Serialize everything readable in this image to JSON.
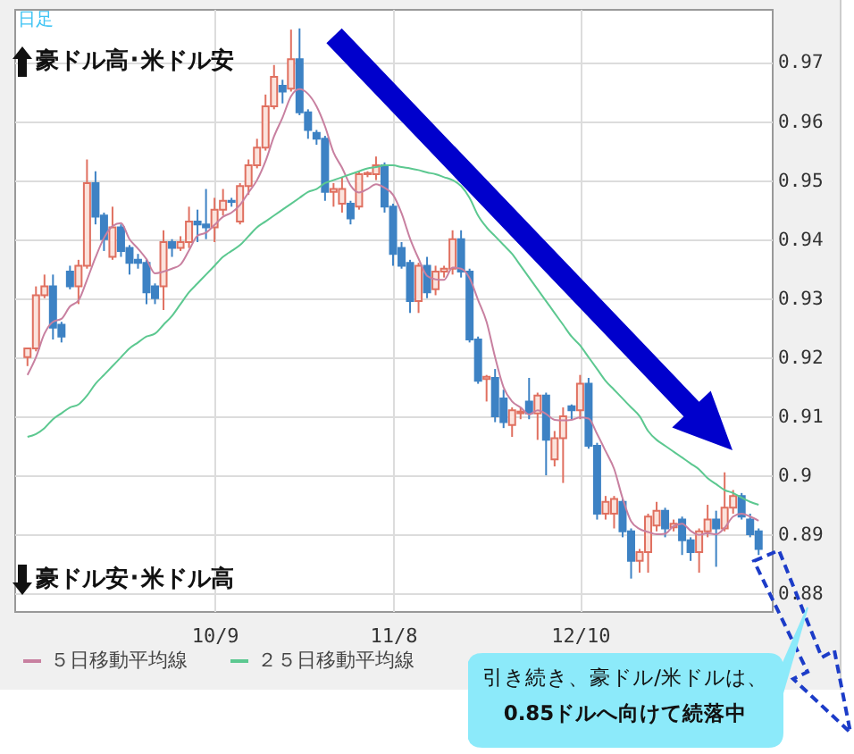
{
  "chart_data": {
    "type": "candlestick",
    "annotations": [
      "日足",
      "豪ドル高･米ドル安",
      "豪ドル安･米ドル高",
      "引き続き、豪ドル/米ドルは、\n0.85ドルへ向けて続落中"
    ],
    "categories": [
      null,
      null,
      null,
      null,
      null,
      null,
      null,
      null,
      null,
      null,
      null,
      null,
      null,
      null,
      null,
      null,
      null,
      null,
      null,
      null,
      null,
      null,
      "10/9",
      null,
      null,
      null,
      null,
      null,
      null,
      null,
      null,
      null,
      null,
      null,
      null,
      null,
      null,
      null,
      null,
      null,
      null,
      null,
      null,
      "11/8",
      null,
      null,
      null,
      null,
      null,
      null,
      null,
      null,
      null,
      null,
      null,
      null,
      null,
      null,
      null,
      null,
      null,
      null,
      null,
      null,
      null,
      "12/10",
      null,
      null,
      null,
      null,
      null,
      null,
      null,
      null,
      null,
      null,
      null,
      null,
      null,
      null,
      null,
      null,
      null,
      null,
      null,
      null,
      null
    ],
    "ohlc": [
      [
        0.92,
        0.9215,
        0.9185,
        0.9215
      ],
      [
        0.9215,
        0.932,
        0.921,
        0.9305
      ],
      [
        0.9305,
        0.934,
        0.93,
        0.932
      ],
      [
        0.932,
        0.934,
        0.923,
        0.925
      ],
      [
        0.9255,
        0.926,
        0.9225,
        0.9235
      ],
      [
        0.9345,
        0.9355,
        0.9315,
        0.932
      ],
      [
        0.932,
        0.9365,
        0.929,
        0.9355
      ],
      [
        0.9355,
        0.9535,
        0.935,
        0.9495
      ],
      [
        0.9495,
        0.9515,
        0.9425,
        0.9438
      ],
      [
        0.944,
        0.9445,
        0.938,
        0.94
      ],
      [
        0.937,
        0.9455,
        0.9365,
        0.942
      ],
      [
        0.942,
        0.9425,
        0.937,
        0.938
      ],
      [
        0.9385,
        0.939,
        0.934,
        0.936
      ],
      [
        0.9365,
        0.9375,
        0.935,
        0.936
      ],
      [
        0.936,
        0.9365,
        0.929,
        0.931
      ],
      [
        0.932,
        0.9325,
        0.929,
        0.93
      ],
      [
        0.932,
        0.9415,
        0.928,
        0.9395
      ],
      [
        0.9395,
        0.94,
        0.937,
        0.9385
      ],
      [
        0.9385,
        0.9405,
        0.938,
        0.9395
      ],
      [
        0.9395,
        0.9455,
        0.9385,
        0.943
      ],
      [
        0.943,
        0.945,
        0.9395,
        0.9425
      ],
      [
        0.9425,
        0.9485,
        0.94,
        0.942
      ],
      [
        0.942,
        0.947,
        0.9395,
        0.945
      ],
      [
        0.945,
        0.9485,
        0.944,
        0.9465
      ],
      [
        0.9465,
        0.947,
        0.9455,
        0.9463
      ],
      [
        0.943,
        0.9495,
        0.9425,
        0.949
      ],
      [
        0.949,
        0.9535,
        0.9475,
        0.9525
      ],
      [
        0.9525,
        0.957,
        0.952,
        0.9555
      ],
      [
        0.9555,
        0.9645,
        0.955,
        0.9625
      ],
      [
        0.9625,
        0.9695,
        0.962,
        0.9675
      ],
      [
        0.966,
        0.967,
        0.963,
        0.965
      ],
      [
        0.9655,
        0.9755,
        0.965,
        0.9705
      ],
      [
        0.9705,
        0.9757,
        0.961,
        0.9615
      ],
      [
        0.9615,
        0.962,
        0.957,
        0.9585
      ],
      [
        0.958,
        0.9585,
        0.956,
        0.957
      ],
      [
        0.957,
        0.9575,
        0.9465,
        0.948
      ],
      [
        0.948,
        0.9495,
        0.9455,
        0.9485
      ],
      [
        0.946,
        0.9505,
        0.9445,
        0.9485
      ],
      [
        0.946,
        0.9465,
        0.9425,
        0.9435
      ],
      [
        0.9455,
        0.9515,
        0.945,
        0.951
      ],
      [
        0.951,
        0.9515,
        0.9505,
        0.9512
      ],
      [
        0.951,
        0.954,
        0.95,
        0.9525
      ],
      [
        0.9525,
        0.953,
        0.9445,
        0.9455
      ],
      [
        0.9455,
        0.946,
        0.9355,
        0.9375
      ],
      [
        0.9385,
        0.9395,
        0.935,
        0.9355
      ],
      [
        0.936,
        0.9365,
        0.9275,
        0.9295
      ],
      [
        0.9295,
        0.936,
        0.9275,
        0.9355
      ],
      [
        0.9355,
        0.937,
        0.93,
        0.931
      ],
      [
        0.9315,
        0.9355,
        0.9305,
        0.9345
      ],
      [
        0.9345,
        0.9355,
        0.9335,
        0.935
      ],
      [
        0.935,
        0.9415,
        0.934,
        0.94
      ],
      [
        0.94,
        0.9415,
        0.9335,
        0.9345
      ],
      [
        0.9345,
        0.935,
        0.9225,
        0.923
      ],
      [
        0.923,
        0.9235,
        0.9155,
        0.916
      ],
      [
        0.9163,
        0.917,
        0.9125,
        0.9167
      ],
      [
        0.9165,
        0.918,
        0.909,
        0.91
      ],
      [
        0.913,
        0.9145,
        0.908,
        0.909
      ],
      [
        0.9085,
        0.9115,
        0.9065,
        0.911
      ],
      [
        0.9105,
        0.9115,
        0.9095,
        0.9108
      ],
      [
        0.9125,
        0.9165,
        0.9095,
        0.9105
      ],
      [
        0.9105,
        0.914,
        0.906,
        0.9135
      ],
      [
        0.9135,
        0.914,
        0.9,
        0.906
      ],
      [
        0.9027,
        0.9075,
        0.9015,
        0.9063
      ],
      [
        0.9063,
        0.9115,
        0.8987,
        0.91
      ],
      [
        0.9117,
        0.912,
        0.9095,
        0.911
      ],
      [
        0.911,
        0.917,
        0.9095,
        0.9155
      ],
      [
        0.9155,
        0.9165,
        0.9045,
        0.905
      ],
      [
        0.905,
        0.9055,
        0.8925,
        0.8935
      ],
      [
        0.8935,
        0.8965,
        0.8925,
        0.8955
      ],
      [
        0.8935,
        0.8965,
        0.891,
        0.896
      ],
      [
        0.8955,
        0.896,
        0.8895,
        0.8905
      ],
      [
        0.8905,
        0.891,
        0.8825,
        0.8855
      ],
      [
        0.8855,
        0.8875,
        0.8835,
        0.887
      ],
      [
        0.887,
        0.8935,
        0.8835,
        0.893
      ],
      [
        0.8915,
        0.8955,
        0.8905,
        0.894
      ],
      [
        0.894,
        0.8945,
        0.8895,
        0.891
      ],
      [
        0.8912,
        0.8925,
        0.8905,
        0.8918
      ],
      [
        0.8925,
        0.893,
        0.8865,
        0.889
      ],
      [
        0.889,
        0.8895,
        0.8855,
        0.887
      ],
      [
        0.887,
        0.891,
        0.8835,
        0.8905
      ],
      [
        0.8905,
        0.895,
        0.8895,
        0.8925
      ],
      [
        0.8925,
        0.894,
        0.8845,
        0.891
      ],
      [
        0.891,
        0.9005,
        0.8905,
        0.8945
      ],
      [
        0.8945,
        0.8975,
        0.8935,
        0.8965
      ],
      [
        0.8965,
        0.897,
        0.8925,
        0.893
      ],
      [
        0.8925,
        0.8935,
        0.8895,
        0.89
      ],
      [
        0.8905,
        0.891,
        0.8865,
        0.8875
      ]
    ],
    "series": [
      {
        "type": "line",
        "name": "５日移動平均線",
        "color": "#c880a0",
        "values": [
          0.917,
          0.92,
          0.924,
          0.926,
          0.9265,
          0.9286,
          0.9296,
          0.9331,
          0.9369,
          0.9402,
          0.9422,
          0.9427,
          0.94,
          0.9384,
          0.9366,
          0.9342,
          0.9345,
          0.935,
          0.9357,
          0.9381,
          0.9406,
          0.9411,
          0.9424,
          0.9438,
          0.9445,
          0.9458,
          0.9479,
          0.95,
          0.9532,
          0.9574,
          0.9606,
          0.9642,
          0.9654,
          0.9646,
          0.9625,
          0.9591,
          0.9547,
          0.9521,
          0.9491,
          0.9479,
          0.9485,
          0.9493,
          0.9487,
          0.9475,
          0.9444,
          0.9401,
          0.9367,
          0.9338,
          0.9332,
          0.9331,
          0.9352,
          0.935,
          0.9334,
          0.9297,
          0.926,
          0.92,
          0.9149,
          0.9125,
          0.9115,
          0.9103,
          0.911,
          0.9104,
          0.9094,
          0.9093,
          0.9094,
          0.9098,
          0.9096,
          0.907,
          0.9041,
          0.9011,
          0.8961,
          0.8922,
          0.8909,
          0.8904,
          0.89,
          0.8901,
          0.8914,
          0.8918,
          0.8906,
          0.8899,
          0.8902,
          0.89,
          0.8911,
          0.893,
          0.8935,
          0.893,
          0.8923
        ]
      },
      {
        "type": "line",
        "name": "２５日移動平均線",
        "color": "#5cc890",
        "values": [
          0.9065,
          0.907,
          0.908,
          0.9095,
          0.9105,
          0.9115,
          0.912,
          0.9135,
          0.9155,
          0.917,
          0.9185,
          0.92,
          0.9215,
          0.9225,
          0.9235,
          0.924,
          0.9255,
          0.927,
          0.929,
          0.931,
          0.9325,
          0.934,
          0.9355,
          0.937,
          0.938,
          0.939,
          0.9405,
          0.942,
          0.943,
          0.944,
          0.945,
          0.946,
          0.947,
          0.948,
          0.9485,
          0.9495,
          0.95,
          0.9505,
          0.951,
          0.9515,
          0.952,
          0.9522,
          0.9525,
          0.9525,
          0.9522,
          0.952,
          0.9517,
          0.9513,
          0.951,
          0.9505,
          0.95,
          0.949,
          0.947,
          0.944,
          0.942,
          0.9405,
          0.939,
          0.9375,
          0.9355,
          0.9335,
          0.9315,
          0.9295,
          0.9275,
          0.9255,
          0.9235,
          0.922,
          0.92,
          0.918,
          0.916,
          0.9145,
          0.913,
          0.9115,
          0.91,
          0.9075,
          0.906,
          0.905,
          0.904,
          0.903,
          0.902,
          0.901,
          0.8995,
          0.8985,
          0.8975,
          0.897,
          0.8962,
          0.8955,
          0.895
        ]
      }
    ],
    "ylim": [
      0.877,
      0.979
    ],
    "yticks": [
      0.88,
      0.89,
      0.9,
      0.91,
      0.92,
      0.93,
      0.94,
      0.95,
      0.96,
      0.97
    ],
    "grid": true,
    "legend": "bottom"
  }
}
